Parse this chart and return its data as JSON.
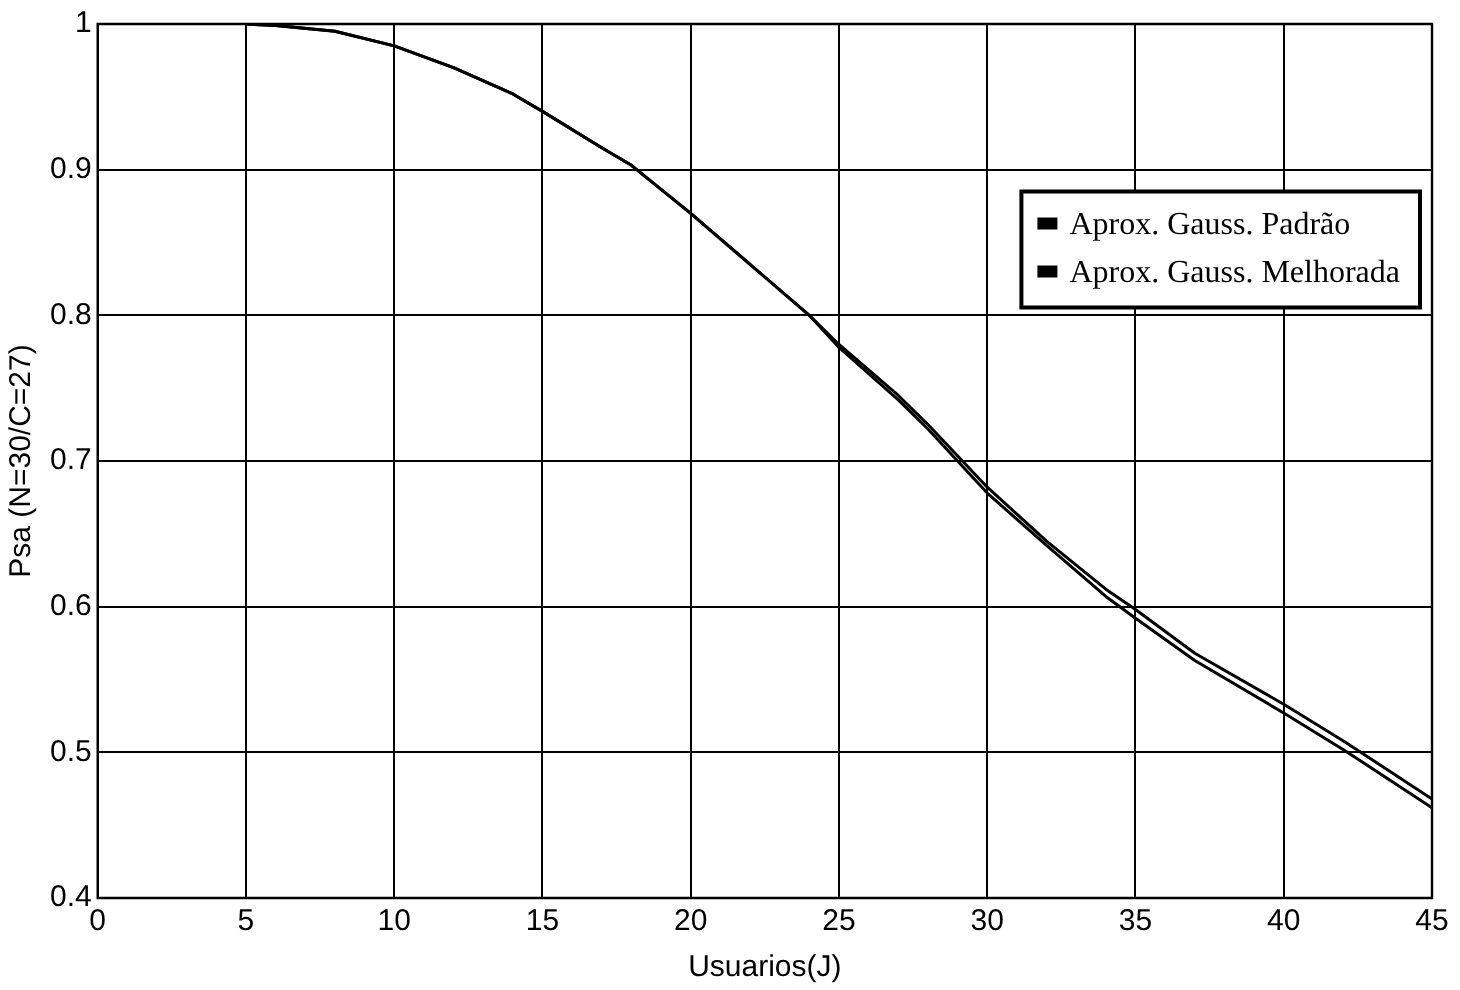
{
  "chart_data": {
    "type": "line",
    "xlabel": "Usuarios(J)",
    "ylabel": "Psa (N=30/C=27)",
    "xlim": [
      0,
      45
    ],
    "xticks": [
      0,
      5,
      10,
      15,
      20,
      25,
      30,
      35,
      40,
      45
    ],
    "ylim": [
      0.4,
      1
    ],
    "yticks": [
      0.4,
      0.5,
      0.6,
      0.7,
      0.8,
      0.9,
      1
    ],
    "grid": true,
    "legend": "right",
    "marker": "none",
    "line_style": "solid",
    "series": [
      {
        "name": "Aprox. Gauss. Padrão",
        "color": "#000000",
        "x": [
          5,
          6,
          8,
          10,
          12,
          14,
          15,
          17,
          18,
          20,
          22,
          24,
          25,
          27,
          28,
          30,
          32,
          34,
          35,
          37,
          40,
          42,
          45
        ],
        "values": [
          1.0,
          0.999,
          0.995,
          0.985,
          0.97,
          0.952,
          0.94,
          0.915,
          0.903,
          0.87,
          0.835,
          0.8,
          0.78,
          0.745,
          0.725,
          0.682,
          0.645,
          0.612,
          0.598,
          0.568,
          0.533,
          0.508,
          0.468
        ]
      },
      {
        "name": "Aprox. Gauss. Melhorada",
        "color": "#000000",
        "x": [
          5,
          6,
          8,
          10,
          12,
          14,
          15,
          17,
          18,
          20,
          22,
          24,
          25,
          27,
          28,
          30,
          32,
          34,
          35,
          37,
          40,
          42,
          45
        ],
        "values": [
          1.0,
          0.999,
          0.995,
          0.985,
          0.97,
          0.952,
          0.94,
          0.915,
          0.903,
          0.87,
          0.835,
          0.8,
          0.778,
          0.742,
          0.722,
          0.678,
          0.642,
          0.607,
          0.592,
          0.563,
          0.527,
          0.502,
          0.462
        ]
      }
    ]
  }
}
